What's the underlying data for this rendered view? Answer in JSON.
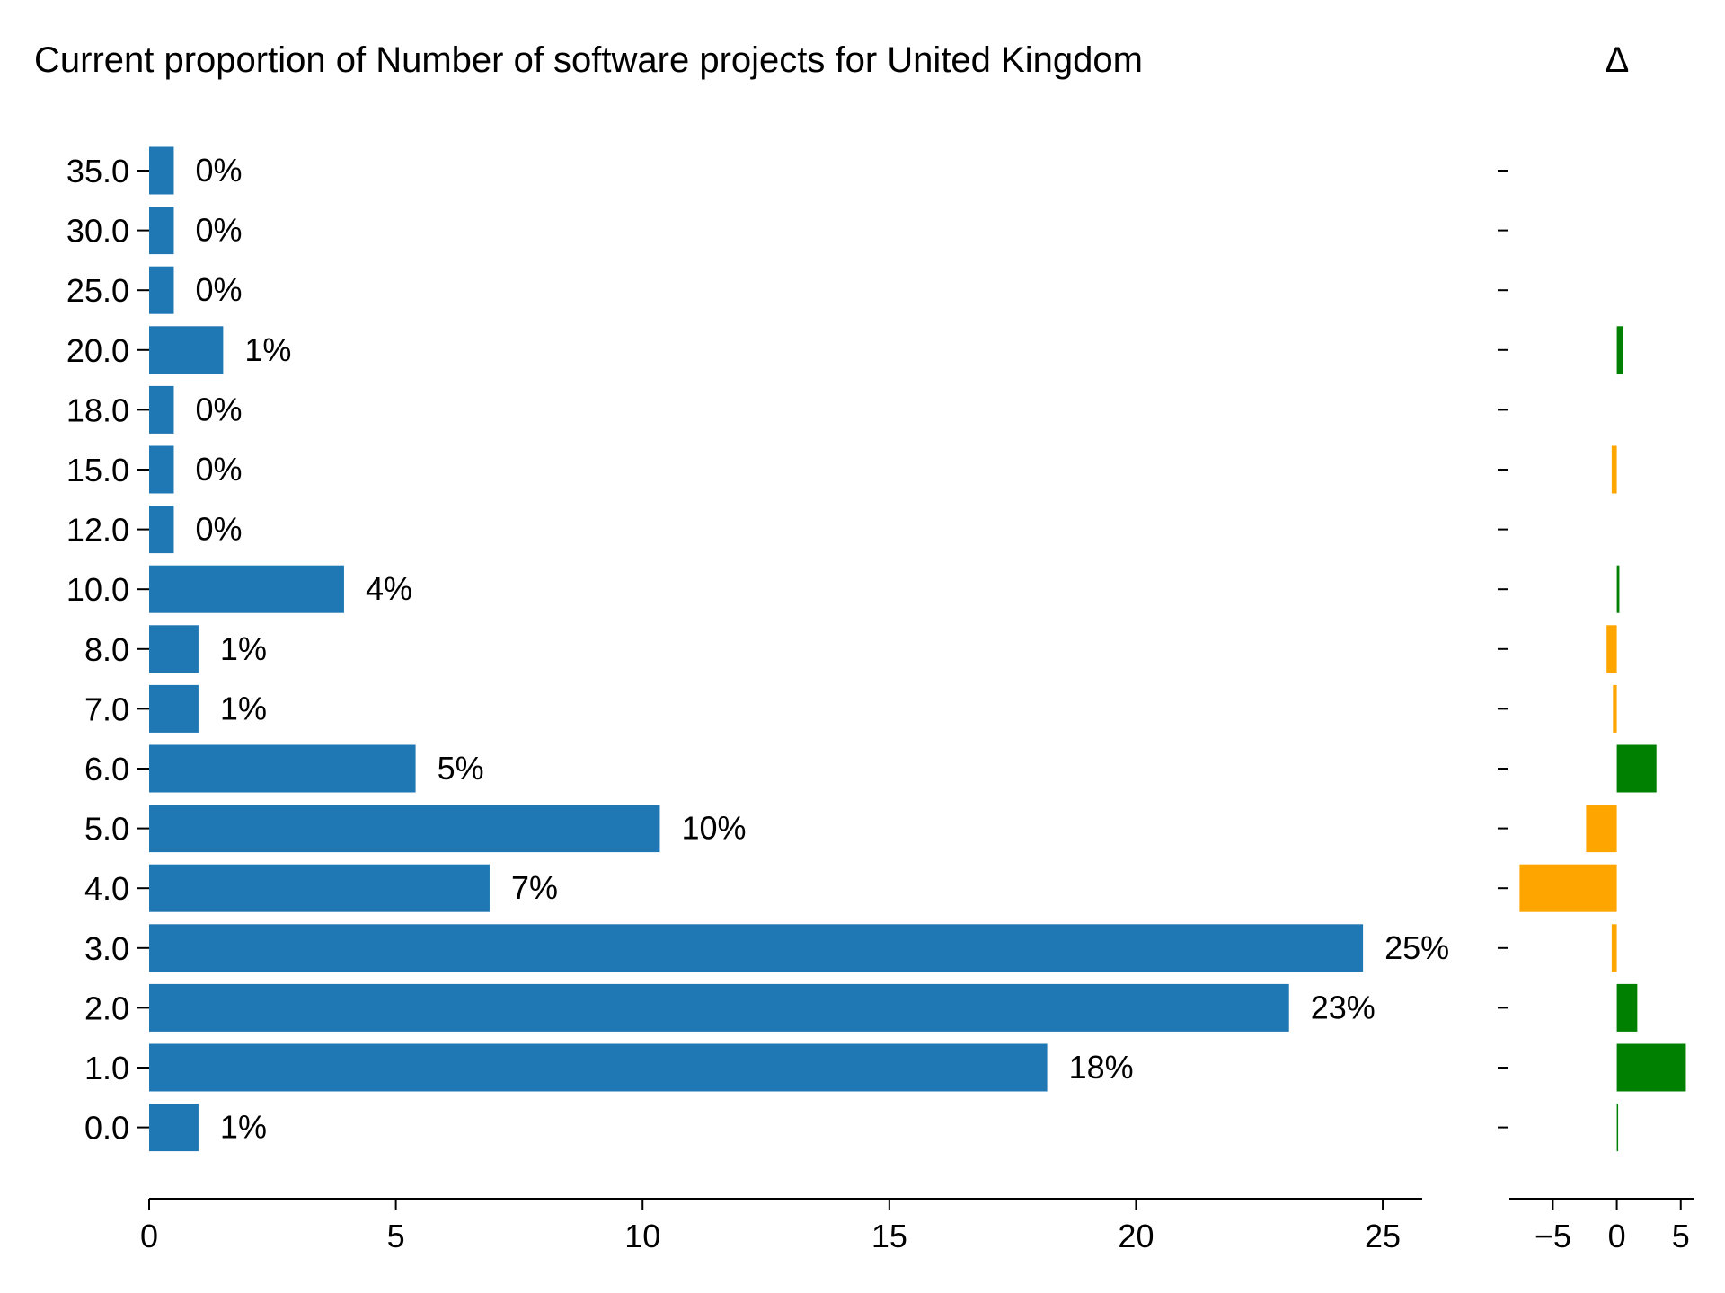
{
  "chart_data": {
    "type": "bar",
    "orientation": "horizontal",
    "title": "Current proportion of Number of software projects for United Kingdom",
    "delta_title": "Δ",
    "categories": [
      "35.0",
      "30.0",
      "25.0",
      "20.0",
      "18.0",
      "15.0",
      "12.0",
      "10.0",
      "8.0",
      "7.0",
      "6.0",
      "5.0",
      "4.0",
      "3.0",
      "2.0",
      "1.0",
      "0.0"
    ],
    "values": [
      0.5,
      0.5,
      0.5,
      1.5,
      0.5,
      0.5,
      0.5,
      3.95,
      1.0,
      1.0,
      5.4,
      10.35,
      6.9,
      24.6,
      23.1,
      18.2,
      1.0
    ],
    "data_labels": [
      "0%",
      "0%",
      "0%",
      "1%",
      "0%",
      "0%",
      "0%",
      "4%",
      "1%",
      "1%",
      "5%",
      "10%",
      "7%",
      "25%",
      "23%",
      "18%",
      "1%"
    ],
    "deltas": [
      0,
      0,
      0,
      0.5,
      0,
      -0.4,
      0,
      0.2,
      -0.8,
      -0.3,
      3.1,
      -2.4,
      -7.6,
      -0.4,
      1.6,
      5.4,
      0.05
    ],
    "xlim": [
      0,
      25.8
    ],
    "xticks": [
      0,
      5,
      10,
      15,
      20,
      25
    ],
    "delta_xlim": [
      -8.4,
      6.0
    ],
    "delta_xticks": [
      -5,
      0,
      5
    ],
    "delta_tick_labels": [
      "−5",
      "0",
      "5"
    ],
    "bar_color": "#1f77b4",
    "delta_positive_color": "#008000",
    "delta_negative_color": "#ffa500",
    "grid": false,
    "legend": "none"
  }
}
